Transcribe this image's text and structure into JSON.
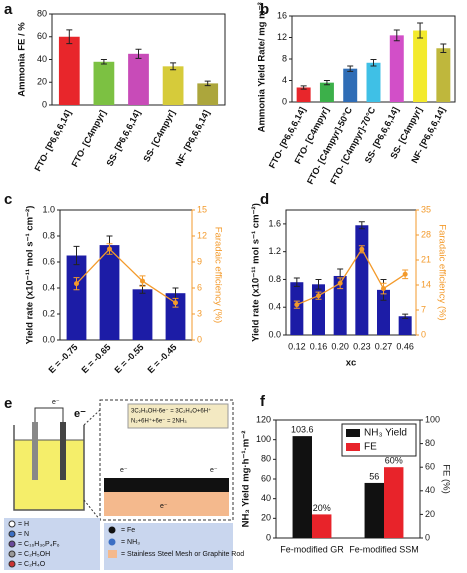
{
  "chart_data": [
    {
      "type": "bar",
      "label": "a",
      "ylabel": "Ammonia FE / %",
      "categories": [
        "FTO- [P6,6,6,14]",
        "FTO- [C4mpyr]",
        "SS- [P6,6,6,14]",
        "SS- [C4mpyr]",
        "NF- [P6,6,6,14]"
      ],
      "values": [
        60,
        38,
        45,
        34,
        19
      ],
      "errors": [
        6,
        2,
        4,
        3,
        2
      ],
      "colors": [
        "#e8262b",
        "#7cc142",
        "#c84bb8",
        "#d6cb3a",
        "#aca63c"
      ],
      "ylim": [
        0,
        80
      ],
      "yticks": [
        0,
        20,
        40,
        60,
        80
      ]
    },
    {
      "type": "bar",
      "label": "b",
      "ylabel": "Ammonia Yield Rate/ mg m⁻² h⁻¹",
      "categories": [
        "FTO- [P6,6,6,14]",
        "FTO- [C4mpyr]",
        "FTO- [C4mpyr]-50°C",
        "FTO- [C4mpyr]-70°C",
        "SS- [P6,6,6,14]",
        "SS- [C4mpyr]",
        "NF- [P6,6,6,14]"
      ],
      "values": [
        2.7,
        3.6,
        6.2,
        7.3,
        12.4,
        13.3,
        10
      ],
      "errors": [
        0.3,
        0.4,
        0.5,
        0.6,
        1,
        1.4,
        0.8
      ],
      "colors": [
        "#e8262b",
        "#3cb04a",
        "#2f6db6",
        "#3fc0e6",
        "#d24fc8",
        "#f3ea2c",
        "#bfb73c"
      ],
      "ylim": [
        0,
        16
      ],
      "yticks": [
        0,
        4,
        8,
        12,
        16
      ]
    },
    {
      "type": "bar",
      "label": "c",
      "ylabel": "Yield rate (x10⁻¹¹ mol s⁻¹ cm⁻²)",
      "y2label": "Faradaic efficiency (%)",
      "y2_color": "#f39a2b",
      "categories": [
        "E = -0.75",
        "E = -0.65",
        "E = -0.55",
        "E = -0.45"
      ],
      "series": [
        {
          "color": "#1c1ca6",
          "values": [
            0.65,
            0.73,
            0.39,
            0.36
          ],
          "errors": [
            0.07,
            0.07,
            0.03,
            0.04
          ]
        },
        {
          "color": "#f39a2b",
          "type": "line",
          "axis": "y2",
          "values": [
            6.5,
            10.5,
            6.8,
            4.3
          ],
          "errors": [
            0.7,
            0.6,
            0.6,
            0.5
          ]
        }
      ],
      "ylim": [
        0,
        1.0
      ],
      "yticks": [
        {
          "value": 0,
          "label": "0.0"
        },
        0.2,
        0.4,
        0.6,
        0.8,
        {
          "value": 1,
          "label": "1.0"
        }
      ],
      "y2lim": [
        0,
        15
      ],
      "y2ticks": [
        0,
        3,
        6,
        9,
        12,
        15
      ]
    },
    {
      "type": "bar",
      "label": "d",
      "ylabel": "Yield rate (x10⁻¹¹ mol s⁻¹ cm⁻²)",
      "y2label": "Faradaic efficiency (%)",
      "xlabel": "xc",
      "y2_color": "#f39a2b",
      "categories": [
        "0.12",
        "0.16",
        "0.20",
        "0.23",
        "0.27",
        "0.46"
      ],
      "series": [
        {
          "color": "#1c1ca6",
          "values": [
            0.76,
            0.73,
            0.85,
            1.58,
            0.65,
            0.27
          ],
          "errors": [
            0.06,
            0.07,
            0.1,
            0.05,
            0.15,
            0.03
          ]
        },
        {
          "color": "#f39a2b",
          "type": "line",
          "axis": "y2",
          "values": [
            8.5,
            11,
            14.5,
            24,
            13,
            17
          ],
          "errors": [
            1,
            1,
            1.5,
            1,
            1.5,
            1.2
          ]
        }
      ],
      "ylim": [
        0,
        1.8
      ],
      "yticks": [
        {
          "value": 0,
          "label": "0.0"
        },
        0.4,
        0.8,
        1.2,
        1.6
      ],
      "y2lim": [
        0,
        35
      ],
      "y2ticks": [
        0,
        7,
        14,
        21,
        28,
        35
      ]
    },
    {
      "type": "bar",
      "label": "f",
      "ylabel": "NH₃ Yield mg·h⁻¹·m⁻²",
      "y2label": "FE (%)",
      "legend": "upper right",
      "categories": [
        "Fe-modified GR",
        "Fe-modified SSM"
      ],
      "series": [
        {
          "name": "NH₃ Yield",
          "color": "#111111",
          "values": [
            103.6,
            56
          ],
          "value_labels": [
            "103.6",
            "56"
          ]
        },
        {
          "name": "FE",
          "color": "#e8232a",
          "axis": "y2",
          "values": [
            20,
            60
          ],
          "value_labels": [
            "20%",
            "60%"
          ]
        }
      ],
      "ylim": [
        0,
        120
      ],
      "yticks": [
        0,
        20,
        40,
        60,
        80,
        100,
        120
      ],
      "y2lim": [
        0,
        100
      ],
      "y2ticks": [
        0,
        20,
        40,
        60,
        80,
        100
      ]
    }
  ],
  "diagram": {
    "label": "e",
    "electron": "e⁻",
    "reactions": [
      "3C₂H₅OH-6e⁻ = 3C₂H₄O+6H⁺",
      "N₂+6H⁺+6e⁻ = 2NH₃"
    ],
    "legend_left": [
      "= H",
      "= N",
      "= C₁₆H₃₆P₄F₆",
      "= C₂H₅OH",
      "= C₂H₄O"
    ],
    "legend_right": [
      "= Fe",
      "= NH₃",
      "= Stainless Steel Mesh or Graphite Rod"
    ]
  }
}
